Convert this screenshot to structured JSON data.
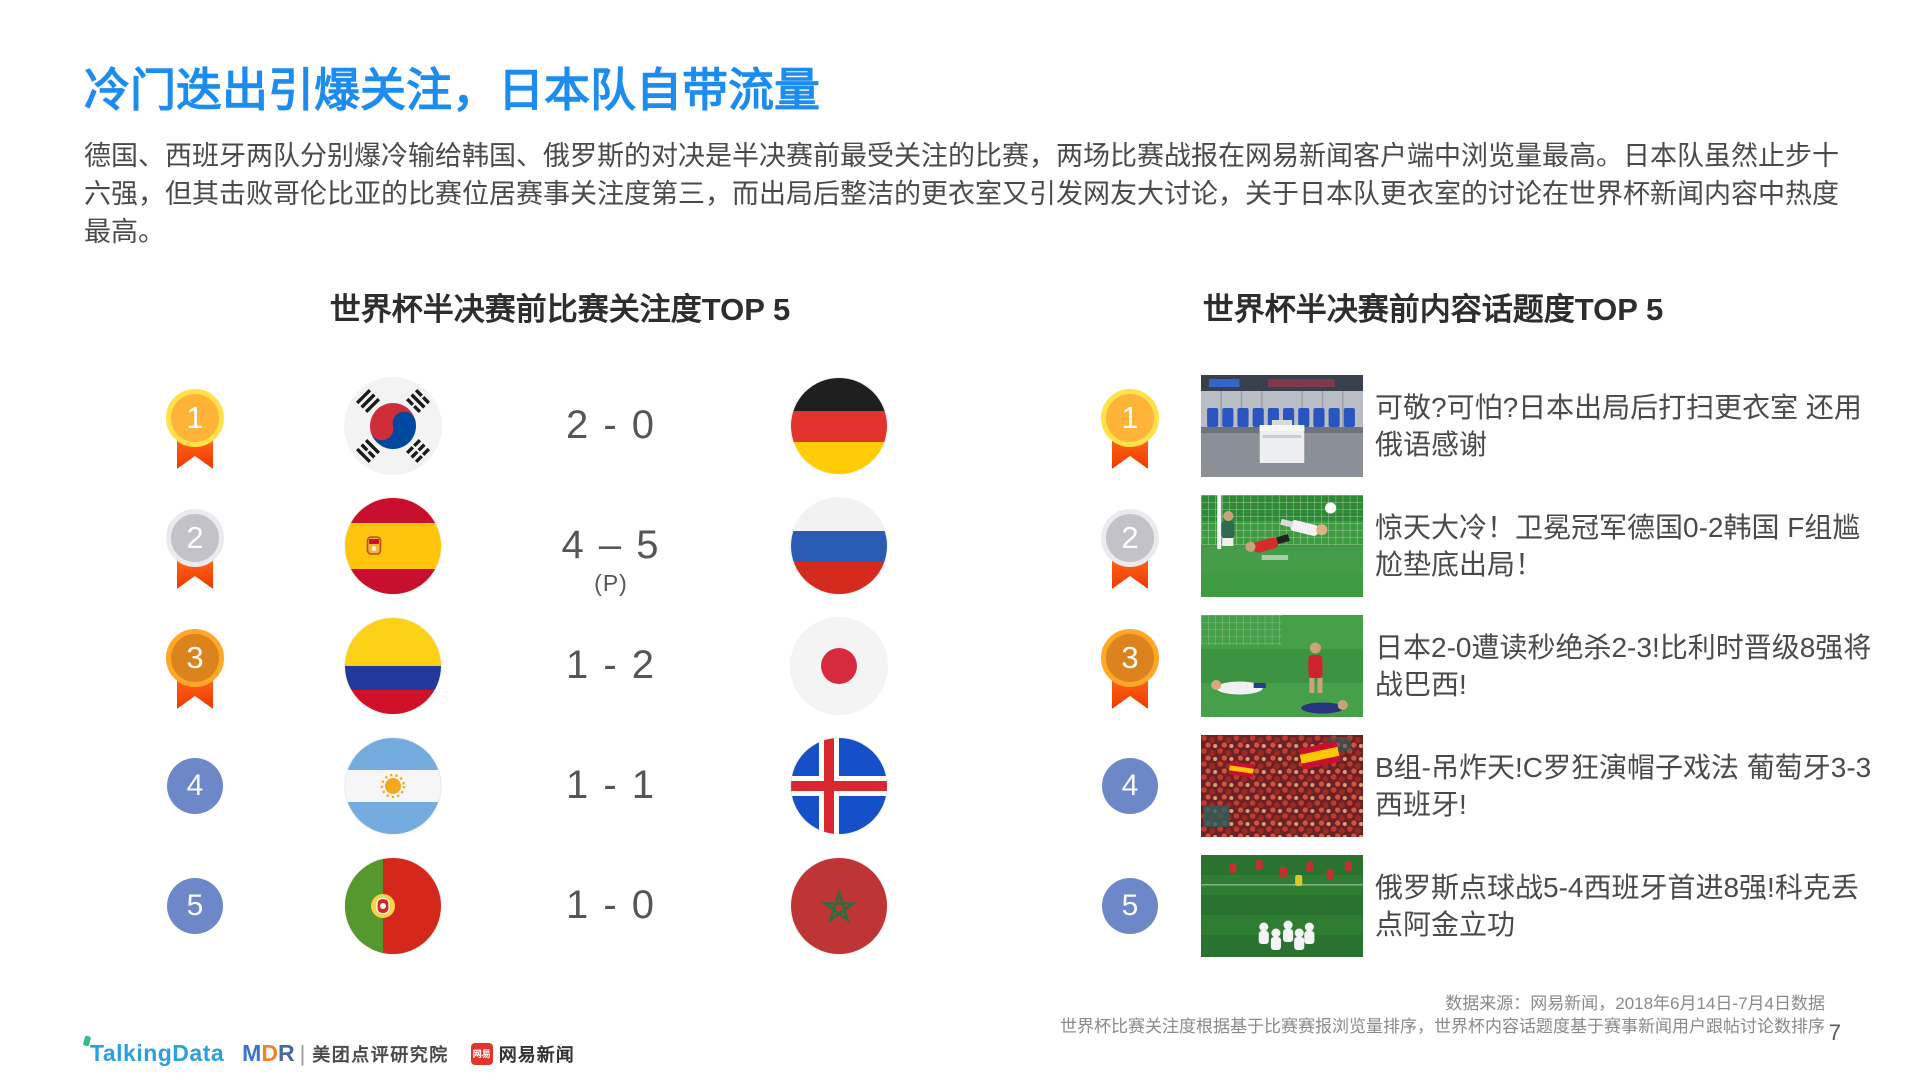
{
  "page": {
    "title": "冷门迭出引爆关注，日本队自带流量",
    "intro": "德国、西班牙两队分别爆冷输给韩国、俄罗斯的对决是半决赛前最受关注的比赛，两场比赛战报在网易新闻客户端中浏览量最高。日本队虽然止步十六强，但其击败哥伦比亚的比赛位居赛事关注度第三，而出局后整洁的更衣室又引发网友大讨论，关于日本队更衣室的讨论在世界杯新闻内容中热度最高。",
    "page_number": "7"
  },
  "match_panel": {
    "title": "世界杯半决赛前比赛关注度TOP 5",
    "rows": [
      {
        "rank": "1",
        "medal": "gold",
        "flag_left": "south-korea",
        "score": "2 - 0",
        "note": "",
        "flag_right": "germany"
      },
      {
        "rank": "2",
        "medal": "silver",
        "flag_left": "spain",
        "score": "4 – 5",
        "note": "(P)",
        "flag_right": "russia"
      },
      {
        "rank": "3",
        "medal": "bronze",
        "flag_left": "colombia",
        "score": "1 - 2",
        "note": "",
        "flag_right": "japan"
      },
      {
        "rank": "4",
        "medal": "plain",
        "flag_left": "argentina",
        "score": "1 - 1",
        "note": "",
        "flag_right": "iceland"
      },
      {
        "rank": "5",
        "medal": "plain",
        "flag_left": "portugal",
        "score": "1 - 0",
        "note": "",
        "flag_right": "morocco"
      }
    ]
  },
  "topic_panel": {
    "title": "世界杯半决赛前内容话题度TOP 5",
    "rows": [
      {
        "rank": "1",
        "medal": "gold",
        "thumb": "locker-room",
        "headline": "可敬?可怕?日本出局后打扫更衣室 还用俄语感谢"
      },
      {
        "rank": "2",
        "medal": "silver",
        "thumb": "germany-korea",
        "headline": "惊天大冷！卫冕冠军德国0-2韩国 F组尴尬垫底出局！"
      },
      {
        "rank": "3",
        "medal": "bronze",
        "thumb": "japan-belgium",
        "headline": "日本2-0遭读秒绝杀2-3!比利时晋级8强将战巴西!"
      },
      {
        "rank": "4",
        "medal": "plain",
        "thumb": "spain-fans",
        "headline": "B组-吊炸天!C罗狂演帽子戏法 葡萄牙3-3西班牙!"
      },
      {
        "rank": "5",
        "medal": "plain",
        "thumb": "russia-celebration",
        "headline": "俄罗斯点球战5-4西班牙首进8强!科克丢点阿金立功"
      }
    ]
  },
  "footer": {
    "source_line1": "数据来源：网易新闻，2018年6月14日-7月4日数据",
    "source_line2": "世界杯比赛关注度根据基于比赛赛报浏览量排序，世界杯内容话题度基于赛事新闻用户跟帖讨论数排序"
  },
  "logos": {
    "talkingdata": "TalkingData",
    "mdr": "MDR",
    "mdr_label": "美团点评研究院",
    "netease_badge": "网易",
    "netease_label": "网易新闻"
  },
  "colors": {
    "accent_blue": "#1d8cf0",
    "rank_blue": "#6d88c9",
    "ribbon_red": "#f03800"
  }
}
